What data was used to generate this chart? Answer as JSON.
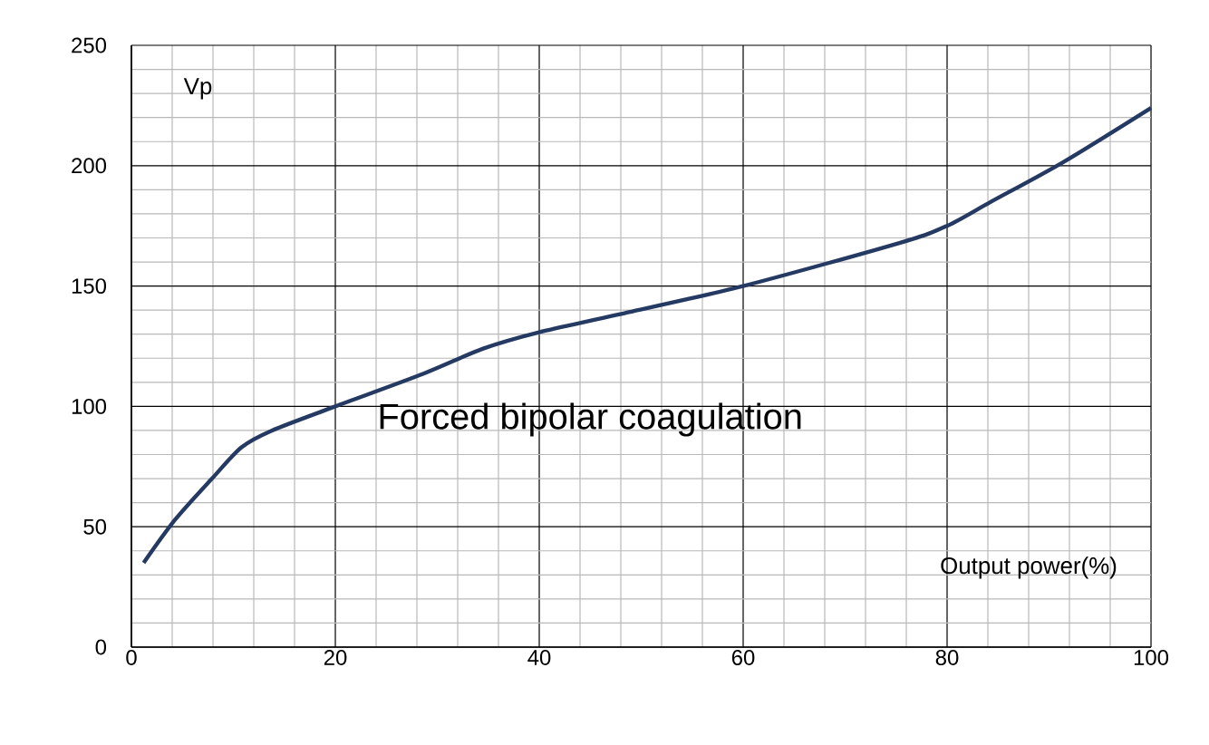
{
  "chart_data": {
    "type": "line",
    "title": "Forced bipolar coagulation",
    "xlabel": "Output power(%)",
    "ylabel": "Vp",
    "x": [
      1.2,
      4.3,
      7.9,
      10.8,
      13.8,
      20,
      28.6,
      34.5,
      39.9,
      47.6,
      60,
      75.4,
      80,
      84.3,
      91.4,
      100
    ],
    "series": [
      {
        "color": "#253a63",
        "values": [
          35,
          53,
          70,
          83,
          90,
          100,
          113.5,
          124,
          130.7,
          138,
          150,
          168,
          175,
          185,
          201.5,
          224
        ]
      }
    ],
    "xlim": [
      0,
      100
    ],
    "ylim": [
      0,
      250
    ],
    "xticks": [
      0,
      20,
      40,
      60,
      80,
      100
    ],
    "yticks": [
      0,
      50,
      100,
      150,
      200,
      250
    ],
    "grid": true,
    "marker": "none",
    "line_style": "solid"
  }
}
